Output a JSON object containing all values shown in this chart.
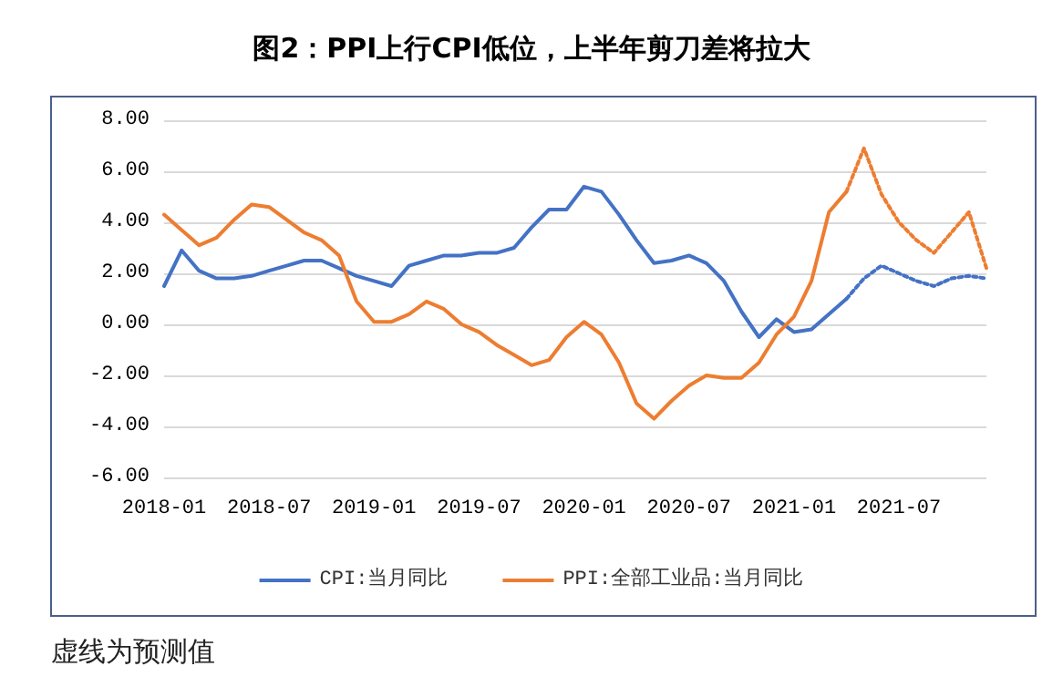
{
  "chart_data": {
    "type": "line",
    "title": "图2：PPI上行CPI低位，上半年剪刀差将拉大",
    "annotations": [
      "虚线为预测值"
    ],
    "x": [
      "2018-01",
      "2018-02",
      "2018-03",
      "2018-04",
      "2018-05",
      "2018-06",
      "2018-07",
      "2018-08",
      "2018-09",
      "2018-10",
      "2018-11",
      "2018-12",
      "2019-01",
      "2019-02",
      "2019-03",
      "2019-04",
      "2019-05",
      "2019-06",
      "2019-07",
      "2019-08",
      "2019-09",
      "2019-10",
      "2019-11",
      "2019-12",
      "2020-01",
      "2020-02",
      "2020-03",
      "2020-04",
      "2020-05",
      "2020-06",
      "2020-07",
      "2020-08",
      "2020-09",
      "2020-10",
      "2020-11",
      "2020-12",
      "2021-01",
      "2021-02",
      "2021-03",
      "2021-04",
      "2021-05",
      "2021-06",
      "2021-07",
      "2021-08",
      "2021-09",
      "2021-10",
      "2021-11",
      "2021-12"
    ],
    "xlim": [
      "2018-01",
      "2021-12"
    ],
    "xticks": [
      {
        "value": "2018-01",
        "label": "2018-01"
      },
      {
        "value": "2018-07",
        "label": "2018-07"
      },
      {
        "value": "2019-01",
        "label": "2019-01"
      },
      {
        "value": "2019-07",
        "label": "2019-07"
      },
      {
        "value": "2020-01",
        "label": "2020-01"
      },
      {
        "value": "2020-07",
        "label": "2020-07"
      },
      {
        "value": "2021-01",
        "label": "2021-01"
      },
      {
        "value": "2021-07",
        "label": "2021-07"
      }
    ],
    "ylim": [
      -6,
      8
    ],
    "yticks": [
      {
        "value": -6,
        "label": "-6.00"
      },
      {
        "value": -4,
        "label": "-4.00"
      },
      {
        "value": -2,
        "label": "-2.00"
      },
      {
        "value": 0,
        "label": "0.00"
      },
      {
        "value": 2,
        "label": "2.00"
      },
      {
        "value": 4,
        "label": "4.00"
      },
      {
        "value": 6,
        "label": "6.00"
      },
      {
        "value": 8,
        "label": "8.00"
      }
    ],
    "grid": "y",
    "legend": "bottom",
    "marker": "none",
    "series": [
      {
        "name": "CPI:当月同比",
        "color": "#4472c4",
        "line_style": "solid",
        "values": [
          1.5,
          2.9,
          2.1,
          1.8,
          1.8,
          1.9,
          2.1,
          2.3,
          2.5,
          2.5,
          2.2,
          1.9,
          1.7,
          1.5,
          2.3,
          2.5,
          2.7,
          2.7,
          2.8,
          2.8,
          3.0,
          3.8,
          4.5,
          4.5,
          5.4,
          5.2,
          4.3,
          3.3,
          2.4,
          2.5,
          2.7,
          2.4,
          1.7,
          0.5,
          -0.5,
          0.2,
          -0.3,
          -0.2,
          0.4,
          1.0,
          null,
          null,
          null,
          null,
          null,
          null,
          null,
          null
        ]
      },
      {
        "name": "PPI:全部工业品:当月同比",
        "color": "#ed7d31",
        "line_style": "solid",
        "values": [
          4.3,
          3.7,
          3.1,
          3.4,
          4.1,
          4.7,
          4.6,
          4.1,
          3.6,
          3.3,
          2.7,
          0.9,
          0.1,
          0.1,
          0.4,
          0.9,
          0.6,
          0.0,
          -0.3,
          -0.8,
          -1.2,
          -1.6,
          -1.4,
          -0.5,
          0.1,
          -0.4,
          -1.5,
          -3.1,
          -3.7,
          -3.0,
          -2.4,
          -2.0,
          -2.1,
          -2.1,
          -1.5,
          -0.4,
          0.3,
          1.7,
          4.4,
          5.2,
          null,
          null,
          null,
          null,
          null,
          null,
          null,
          null
        ]
      },
      {
        "color": "#4472c4",
        "line_style": "dotted",
        "values": [
          null,
          null,
          null,
          null,
          null,
          null,
          null,
          null,
          null,
          null,
          null,
          null,
          null,
          null,
          null,
          null,
          null,
          null,
          null,
          null,
          null,
          null,
          null,
          null,
          null,
          null,
          null,
          null,
          null,
          null,
          null,
          null,
          null,
          null,
          null,
          null,
          null,
          null,
          null,
          1.0,
          1.8,
          2.3,
          2.0,
          1.7,
          1.5,
          1.8,
          1.9,
          1.8
        ]
      },
      {
        "color": "#ed7d31",
        "line_style": "dotted",
        "values": [
          null,
          null,
          null,
          null,
          null,
          null,
          null,
          null,
          null,
          null,
          null,
          null,
          null,
          null,
          null,
          null,
          null,
          null,
          null,
          null,
          null,
          null,
          null,
          null,
          null,
          null,
          null,
          null,
          null,
          null,
          null,
          null,
          null,
          null,
          null,
          null,
          null,
          null,
          null,
          5.2,
          6.9,
          5.1,
          4.0,
          3.3,
          2.8,
          3.6,
          4.4,
          2.2
        ]
      }
    ]
  }
}
